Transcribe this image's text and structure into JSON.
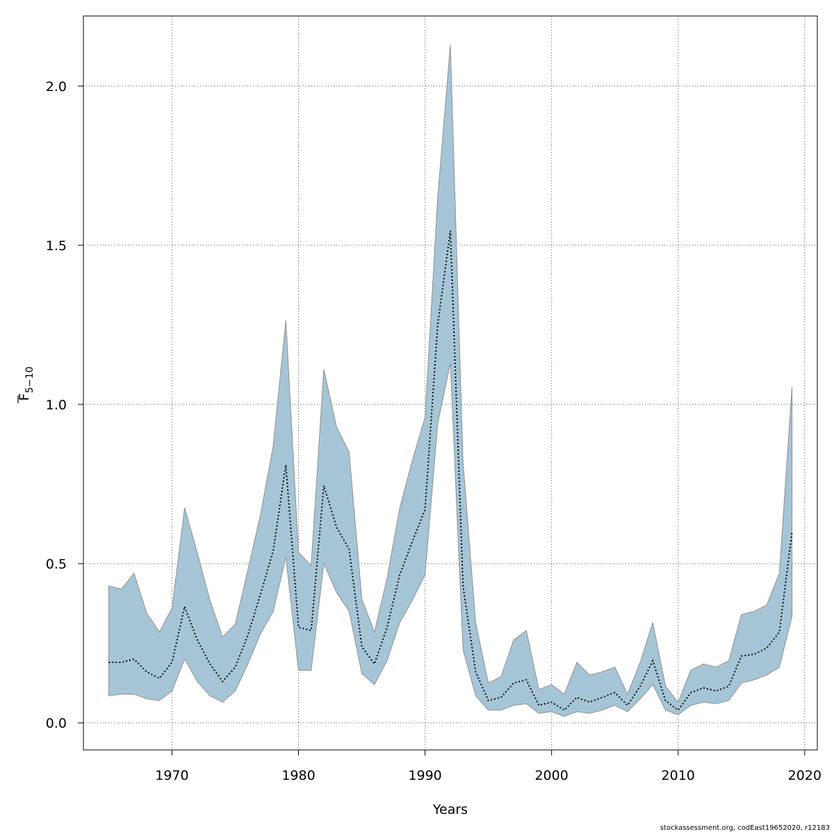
{
  "chart_data": {
    "type": "area",
    "xlabel": "Years",
    "ylabel": "F",
    "ylabel_subscript": "5−10",
    "xlim": [
      1963,
      2021
    ],
    "ylim": [
      -0.085,
      2.22
    ],
    "x_ticks": [
      1970,
      1980,
      1990,
      2000,
      2010,
      2020
    ],
    "y_ticks": [
      0.0,
      0.5,
      1.0,
      1.5,
      2.0
    ],
    "y_tick_labels": [
      "0.0",
      "0.5",
      "1.0",
      "1.5",
      "2.0"
    ],
    "grid": true,
    "colors": {
      "band": "#a5c5d6",
      "band_edge": "#8f8f8f",
      "line": "#000000",
      "grid": "#555555"
    },
    "years": [
      1965,
      1966,
      1967,
      1968,
      1969,
      1970,
      1971,
      1972,
      1973,
      1974,
      1975,
      1976,
      1977,
      1978,
      1979,
      1980,
      1981,
      1982,
      1983,
      1984,
      1985,
      1986,
      1987,
      1988,
      1989,
      1990,
      1991,
      1992,
      1993,
      1994,
      1995,
      1996,
      1997,
      1998,
      1999,
      2000,
      2001,
      2002,
      2003,
      2004,
      2005,
      2006,
      2007,
      2008,
      2009,
      2010,
      2011,
      2012,
      2013,
      2014,
      2015,
      2016,
      2017,
      2018,
      2019
    ],
    "series": [
      {
        "role": "upper",
        "values": [
          0.43,
          0.42,
          0.47,
          0.345,
          0.285,
          0.36,
          0.675,
          0.535,
          0.385,
          0.27,
          0.31,
          0.48,
          0.655,
          0.87,
          1.265,
          0.535,
          0.495,
          1.11,
          0.93,
          0.85,
          0.39,
          0.285,
          0.455,
          0.675,
          0.825,
          0.96,
          1.65,
          2.13,
          0.82,
          0.315,
          0.125,
          0.145,
          0.26,
          0.29,
          0.105,
          0.12,
          0.09,
          0.19,
          0.15,
          0.16,
          0.175,
          0.09,
          0.19,
          0.315,
          0.115,
          0.065,
          0.165,
          0.185,
          0.175,
          0.195,
          0.34,
          0.35,
          0.37,
          0.47,
          1.055
        ]
      },
      {
        "role": "estimate",
        "values": [
          0.19,
          0.19,
          0.2,
          0.16,
          0.14,
          0.19,
          0.365,
          0.26,
          0.185,
          0.13,
          0.175,
          0.275,
          0.405,
          0.54,
          0.81,
          0.3,
          0.29,
          0.745,
          0.615,
          0.545,
          0.24,
          0.185,
          0.3,
          0.465,
          0.57,
          0.67,
          1.25,
          1.545,
          0.43,
          0.16,
          0.07,
          0.08,
          0.125,
          0.135,
          0.055,
          0.065,
          0.04,
          0.08,
          0.065,
          0.08,
          0.095,
          0.055,
          0.115,
          0.195,
          0.07,
          0.04,
          0.095,
          0.11,
          0.1,
          0.115,
          0.21,
          0.215,
          0.235,
          0.285,
          0.6
        ]
      },
      {
        "role": "lower",
        "values": [
          0.085,
          0.09,
          0.09,
          0.075,
          0.07,
          0.1,
          0.2,
          0.13,
          0.085,
          0.065,
          0.1,
          0.185,
          0.28,
          0.35,
          0.52,
          0.165,
          0.165,
          0.5,
          0.41,
          0.35,
          0.155,
          0.12,
          0.195,
          0.315,
          0.385,
          0.465,
          0.94,
          1.13,
          0.23,
          0.085,
          0.04,
          0.04,
          0.055,
          0.06,
          0.03,
          0.035,
          0.02,
          0.035,
          0.03,
          0.04,
          0.055,
          0.035,
          0.075,
          0.12,
          0.04,
          0.025,
          0.055,
          0.065,
          0.06,
          0.07,
          0.125,
          0.135,
          0.15,
          0.175,
          0.335
        ]
      }
    ]
  },
  "footer": "stockassessment.org, codEast19652020, r12183"
}
